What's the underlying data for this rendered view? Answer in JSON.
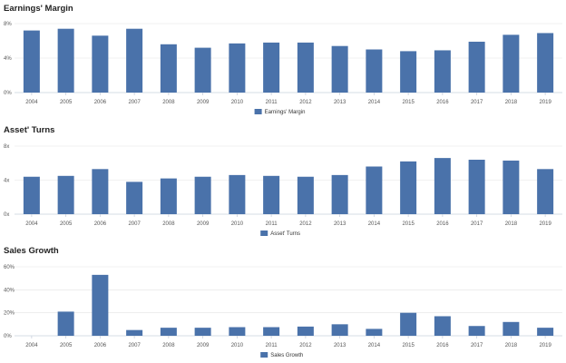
{
  "chart_data": [
    {
      "type": "bar",
      "title": "Earnings' Margin",
      "categories": [
        "2004",
        "2005",
        "2006",
        "2007",
        "2008",
        "2009",
        "2010",
        "2011",
        "2012",
        "2013",
        "2014",
        "2015",
        "2016",
        "2017",
        "2018",
        "2019"
      ],
      "series": [
        {
          "name": "Earnings' Margin",
          "values": [
            7.2,
            7.4,
            6.6,
            7.4,
            5.6,
            5.2,
            5.7,
            5.8,
            5.8,
            5.4,
            5.0,
            4.8,
            4.9,
            5.9,
            6.7,
            6.9
          ]
        }
      ],
      "yticks": [
        "0%",
        "4%",
        "8%"
      ],
      "ylim": [
        0,
        8
      ],
      "legend": "bottom-center",
      "grid": true,
      "color": "#4a72aa"
    },
    {
      "type": "bar",
      "title": "Asset' Turns",
      "categories": [
        "2004",
        "2005",
        "2006",
        "2007",
        "2008",
        "2009",
        "2010",
        "2011",
        "2012",
        "2013",
        "2014",
        "2015",
        "2016",
        "2017",
        "2018",
        "2019"
      ],
      "series": [
        {
          "name": "Asset' Turns",
          "values": [
            4.4,
            4.5,
            5.3,
            3.8,
            4.2,
            4.4,
            4.6,
            4.5,
            4.4,
            4.6,
            5.6,
            6.2,
            6.6,
            6.4,
            6.3,
            5.3
          ]
        }
      ],
      "yticks": [
        "0x",
        "4x",
        "8x"
      ],
      "ylim": [
        0,
        8
      ],
      "legend": "bottom-center",
      "grid": true,
      "color": "#4a72aa"
    },
    {
      "type": "bar",
      "title": "Sales Growth",
      "categories": [
        "2004",
        "2005",
        "2006",
        "2007",
        "2008",
        "2009",
        "2010",
        "2011",
        "2012",
        "2013",
        "2014",
        "2015",
        "2016",
        "2017",
        "2018",
        "2019"
      ],
      "series": [
        {
          "name": "Sales Growth",
          "values": [
            0,
            21,
            53,
            5,
            7,
            7,
            7.5,
            7.5,
            8,
            10,
            6,
            20,
            17,
            8.5,
            12,
            7
          ]
        }
      ],
      "yticks": [
        "0%",
        "20%",
        "40%",
        "60%"
      ],
      "ylim": [
        0,
        60
      ],
      "legend": "bottom-center",
      "grid": true,
      "color": "#4a72aa"
    }
  ]
}
